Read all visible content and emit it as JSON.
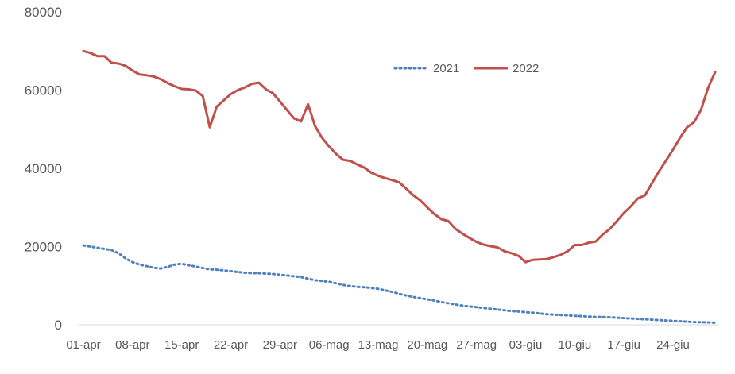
{
  "chart_data": {
    "type": "line",
    "title": "",
    "xlabel": "",
    "ylabel": "",
    "ylim": [
      0,
      80000
    ],
    "yticks": [
      0,
      20000,
      40000,
      60000,
      80000
    ],
    "x_tick_labels": [
      "01-apr",
      "08-apr",
      "15-apr",
      "22-apr",
      "29-apr",
      "06-mag",
      "13-mag",
      "20-mag",
      "27-mag",
      "03-giu",
      "10-giu",
      "17-giu",
      "24-giu"
    ],
    "x_tick_day_index": [
      0,
      7,
      14,
      21,
      28,
      35,
      42,
      49,
      56,
      63,
      70,
      77,
      84
    ],
    "grid": false,
    "legend_position": "top-center",
    "series": [
      {
        "name": "2021",
        "color": "#4f81bd",
        "style": "dotted",
        "values": [
          20300,
          20000,
          19700,
          19400,
          19100,
          18300,
          17000,
          16000,
          15400,
          15000,
          14600,
          14400,
          14800,
          15400,
          15600,
          15200,
          14900,
          14500,
          14200,
          14100,
          13900,
          13700,
          13500,
          13300,
          13200,
          13200,
          13100,
          13000,
          12800,
          12600,
          12400,
          12200,
          11800,
          11400,
          11200,
          11000,
          10600,
          10200,
          9900,
          9700,
          9600,
          9400,
          9200,
          8800,
          8400,
          7900,
          7500,
          7100,
          6800,
          6500,
          6200,
          5800,
          5500,
          5200,
          4900,
          4700,
          4500,
          4300,
          4100,
          3900,
          3700,
          3500,
          3400,
          3200,
          3100,
          2900,
          2700,
          2600,
          2500,
          2400,
          2300,
          2200,
          2100,
          2000,
          2000,
          1900,
          1800,
          1700,
          1600,
          1500,
          1400,
          1300,
          1200,
          1100,
          1000,
          900,
          800,
          700,
          650,
          600,
          550
        ]
      },
      {
        "name": "2022",
        "color": "#c0504d",
        "style": "solid",
        "values": [
          70000,
          69500,
          68700,
          68700,
          67000,
          66800,
          66200,
          65000,
          64000,
          63800,
          63500,
          62800,
          61800,
          61000,
          60300,
          60200,
          59900,
          58500,
          50500,
          55800,
          57400,
          59000,
          60000,
          60700,
          61600,
          61900,
          60200,
          59200,
          57100,
          54900,
          52800,
          52000,
          56400,
          50800,
          47800,
          45600,
          43700,
          42200,
          41900,
          41000,
          40200,
          38900,
          38100,
          37500,
          37000,
          36400,
          34800,
          33100,
          31800,
          30000,
          28300,
          27000,
          26500,
          24500,
          23300,
          22200,
          21200,
          20500,
          20100,
          19800,
          18800,
          18300,
          17600,
          16000,
          16600,
          16700,
          16800,
          17300,
          17900,
          18800,
          20400,
          20400,
          21000,
          21300,
          23100,
          24500,
          26500,
          28600,
          30300,
          32300,
          33100,
          36200,
          39200,
          42000,
          44800,
          47800,
          50500,
          51800,
          55000,
          60600,
          64600
        ]
      }
    ]
  }
}
